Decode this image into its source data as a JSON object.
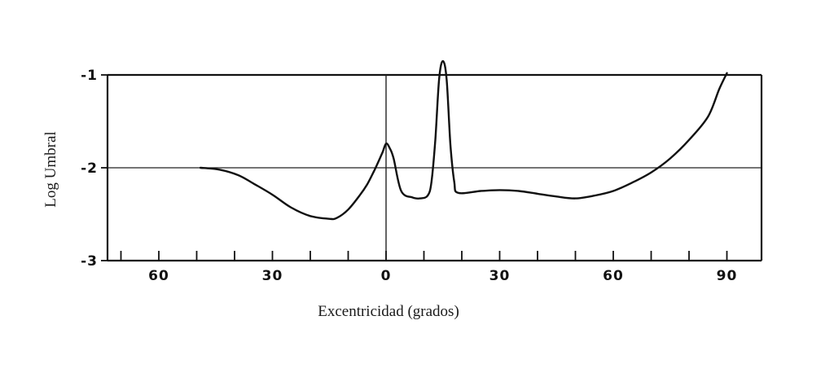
{
  "chart_data": {
    "type": "line",
    "title": "",
    "xlabel": "Excentricidad (grados)",
    "ylabel": "Log Umbral",
    "xlim": [
      -80,
      100
    ],
    "ylim": [
      -3,
      -1
    ],
    "x_ticks": [
      {
        "value": -60,
        "label": "60"
      },
      {
        "value": -30,
        "label": "30"
      },
      {
        "value": 0,
        "label": "0"
      },
      {
        "value": 30,
        "label": "30"
      },
      {
        "value": 60,
        "label": "60"
      },
      {
        "value": 90,
        "label": "90"
      }
    ],
    "x_minor_ticks": [
      -70,
      -60,
      -50,
      -40,
      -30,
      -20,
      -10,
      0,
      10,
      20,
      30,
      40,
      50,
      60,
      70,
      80,
      90
    ],
    "y_ticks": [
      {
        "value": -1,
        "label": "-1"
      },
      {
        "value": -2,
        "label": "-2"
      },
      {
        "value": -3,
        "label": "-3"
      }
    ],
    "reference_lines": {
      "horizontal": -2,
      "vertical": 0
    },
    "grid": false,
    "series": [
      {
        "color": "#111111",
        "points": [
          [
            -49,
            -2.0
          ],
          [
            -44,
            -2.02
          ],
          [
            -39,
            -2.08
          ],
          [
            -35,
            -2.17
          ],
          [
            -30,
            -2.29
          ],
          [
            -25,
            -2.43
          ],
          [
            -20,
            -2.52
          ],
          [
            -15,
            -2.55
          ],
          [
            -13,
            -2.54
          ],
          [
            -10,
            -2.45
          ],
          [
            -7,
            -2.3
          ],
          [
            -5,
            -2.18
          ],
          [
            -3,
            -2.02
          ],
          [
            -1,
            -1.84
          ],
          [
            0,
            -1.74
          ],
          [
            1,
            -1.79
          ],
          [
            2,
            -1.9
          ],
          [
            4,
            -2.25
          ],
          [
            7,
            -2.32
          ],
          [
            9,
            -2.33
          ],
          [
            11,
            -2.3
          ],
          [
            12,
            -2.15
          ],
          [
            13,
            -1.7
          ],
          [
            14,
            -1.05
          ],
          [
            15,
            -0.85
          ],
          [
            16,
            -1.05
          ],
          [
            17,
            -1.75
          ],
          [
            18,
            -2.15
          ],
          [
            19,
            -2.27
          ],
          [
            25,
            -2.25
          ],
          [
            30,
            -2.24
          ],
          [
            35,
            -2.25
          ],
          [
            40,
            -2.28
          ],
          [
            45,
            -2.31
          ],
          [
            50,
            -2.33
          ],
          [
            55,
            -2.3
          ],
          [
            60,
            -2.25
          ],
          [
            65,
            -2.16
          ],
          [
            70,
            -2.05
          ],
          [
            75,
            -1.9
          ],
          [
            80,
            -1.7
          ],
          [
            85,
            -1.45
          ],
          [
            88,
            -1.15
          ],
          [
            90,
            -0.98
          ]
        ]
      }
    ]
  }
}
